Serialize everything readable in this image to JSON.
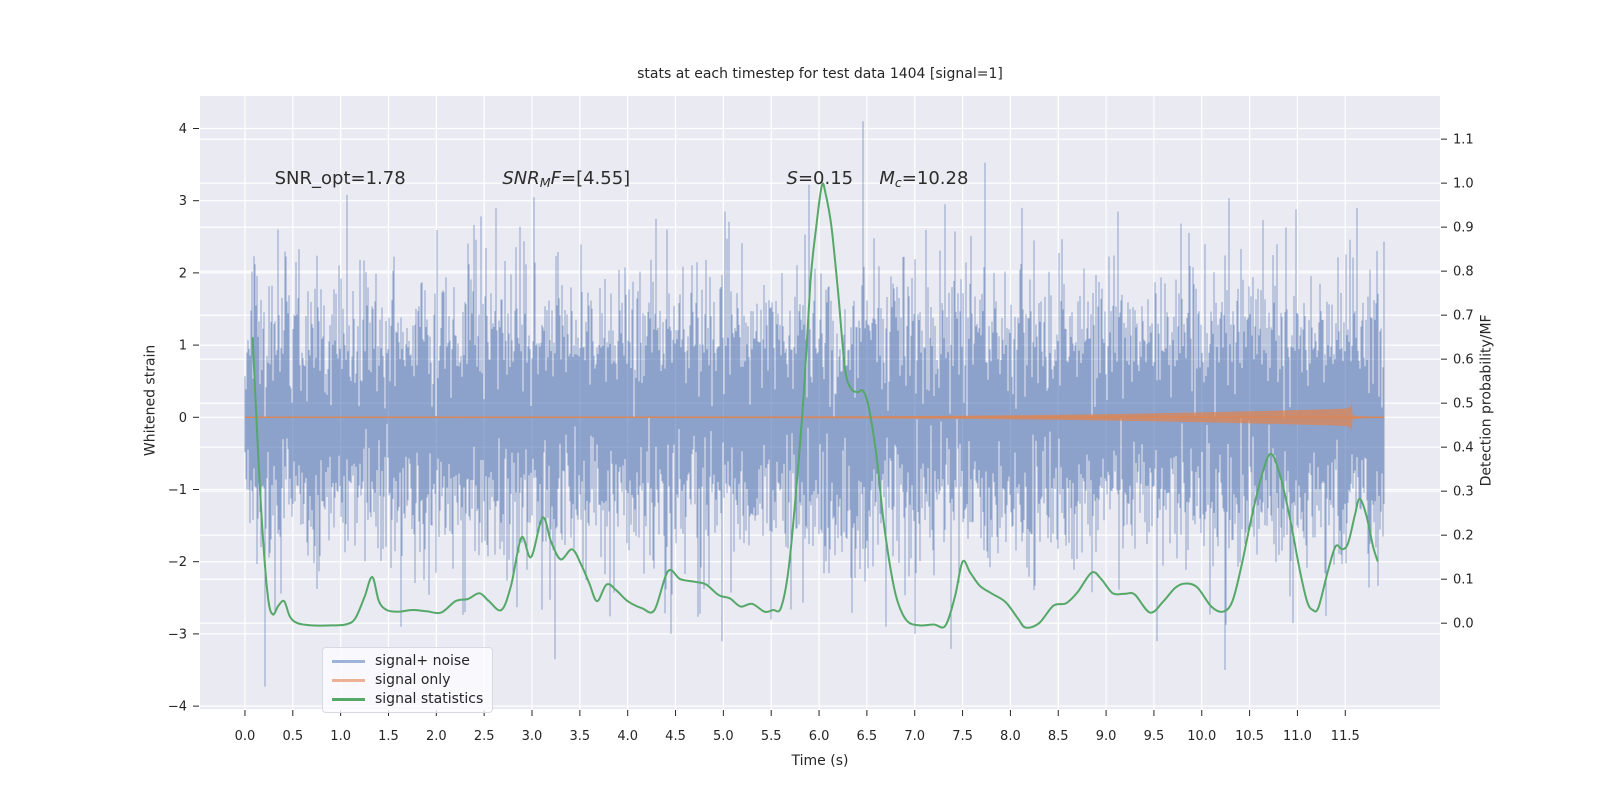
{
  "chart_data": {
    "type": "line",
    "title": "stats at each timestep for test data 1404 [signal=1]",
    "xlabel": "Time (s)",
    "ylabel_left": "Whitened strain",
    "ylabel_right": "Detection probability/MF",
    "grid": true,
    "background_color": "#eaeaf2",
    "grid_color": "#ffffff",
    "xlim": [
      -0.47,
      12.49
    ],
    "ylim_left": [
      -4.04,
      4.45
    ],
    "ylim_right": [
      -0.195,
      1.198
    ],
    "x_ticks": [
      0.0,
      0.5,
      1.0,
      1.5,
      2.0,
      2.5,
      3.0,
      3.5,
      4.0,
      4.5,
      5.0,
      5.5,
      6.0,
      6.5,
      7.0,
      7.5,
      8.0,
      8.5,
      9.0,
      9.5,
      10.0,
      10.5,
      11.0,
      11.5
    ],
    "x_tick_labels": [
      "0.0",
      "0.5",
      "1.0",
      "1.5",
      "2.0",
      "2.5",
      "3.0",
      "3.5",
      "4.0",
      "4.5",
      "5.0",
      "5.5",
      "6.0",
      "6.5",
      "7.0",
      "7.5",
      "8.0",
      "8.5",
      "9.0",
      "9.5",
      "10.0",
      "10.5",
      "11.0",
      "11.5"
    ],
    "y_ticks_left": [
      -4,
      -3,
      -2,
      -1,
      0,
      1,
      2,
      3,
      4
    ],
    "y_tick_labels_left": [
      "−4",
      "−3",
      "−2",
      "−1",
      "0",
      "1",
      "2",
      "3",
      "4"
    ],
    "y_ticks_right": [
      0.0,
      0.1,
      0.2,
      0.3,
      0.4,
      0.5,
      0.6,
      0.7,
      0.8,
      0.9,
      1.0,
      1.1
    ],
    "y_tick_labels_right": [
      "0.0",
      "0.1",
      "0.2",
      "0.3",
      "0.4",
      "0.5",
      "0.6",
      "0.7",
      "0.8",
      "0.9",
      "1.0",
      "1.1"
    ],
    "legend": {
      "position": "lower-left",
      "entries": [
        {
          "label": "signal+ noise",
          "swatch_color": "#9db3d8"
        },
        {
          "label": "signal only",
          "swatch_color": "#ecb195"
        },
        {
          "label": "signal statistics",
          "swatch_color": "#55a868"
        }
      ]
    },
    "annotations": [
      {
        "t": 0.31,
        "y_strain": 3.2,
        "segments": [
          {
            "text": "SNR_opt=1.78"
          }
        ]
      },
      {
        "t": 2.69,
        "y_strain": 3.2,
        "segments": [
          {
            "text": "SNR",
            "italic": true
          },
          {
            "text": "M",
            "italic": true,
            "sub": true
          },
          {
            "text": "F",
            "italic": true
          },
          {
            "text": "=[4.55]"
          }
        ]
      },
      {
        "t": 5.66,
        "y_strain": 3.2,
        "segments": [
          {
            "text": "S",
            "italic": true
          },
          {
            "text": "=0.15"
          }
        ]
      },
      {
        "t": 6.63,
        "y_strain": 3.2,
        "segments": [
          {
            "text": "M",
            "italic": true
          },
          {
            "text": "c",
            "italic": true,
            "sub": true
          },
          {
            "text": "=10.28"
          }
        ]
      }
    ],
    "series": [
      {
        "name": "signal+ noise",
        "axis": "left",
        "render": "noise-band",
        "color": "#4c72b0",
        "alpha": 0.6,
        "noise_model": {
          "seed": 1404,
          "sigma": 0.85,
          "samples_per_column": 8,
          "t_start": 0.0,
          "t_end": 11.92,
          "clip": [
            -3.8,
            4.12
          ]
        },
        "notable_spikes_up": [
          [
            0.35,
            2.6
          ],
          [
            1.07,
            3.08
          ],
          [
            2.62,
            2.9
          ],
          [
            3.02,
            3.05
          ],
          [
            4.3,
            2.75
          ],
          [
            5.02,
            2.85
          ],
          [
            5.9,
            3.22
          ],
          [
            6.46,
            4.1
          ],
          [
            7.32,
            2.95
          ],
          [
            8.12,
            2.9
          ],
          [
            9.12,
            2.85
          ],
          [
            10.98,
            2.88
          ],
          [
            11.62,
            2.9
          ]
        ],
        "notable_spikes_down": [
          [
            0.21,
            -3.73
          ],
          [
            1.63,
            -2.9
          ],
          [
            2.3,
            -2.7
          ],
          [
            3.24,
            -3.35
          ],
          [
            4.45,
            -3.0
          ],
          [
            5.5,
            -2.8
          ],
          [
            6.7,
            -2.9
          ],
          [
            7.0,
            -3.0
          ],
          [
            9.53,
            -3.1
          ],
          [
            10.24,
            -3.5
          ],
          [
            10.95,
            -2.85
          ],
          [
            11.3,
            -2.75
          ]
        ]
      },
      {
        "name": "signal only",
        "axis": "left",
        "render": "chirp-envelope",
        "color": "#dd8452",
        "alpha": 0.75,
        "center_strain": 0.0,
        "envelope": [
          [
            0.0,
            0.008
          ],
          [
            2.0,
            0.009
          ],
          [
            4.0,
            0.01
          ],
          [
            5.0,
            0.011
          ],
          [
            6.0,
            0.013
          ],
          [
            6.5,
            0.015
          ],
          [
            7.0,
            0.018
          ],
          [
            7.5,
            0.022
          ],
          [
            8.0,
            0.028
          ],
          [
            8.5,
            0.035
          ],
          [
            9.0,
            0.044
          ],
          [
            9.5,
            0.055
          ],
          [
            10.0,
            0.068
          ],
          [
            10.4,
            0.08
          ],
          [
            10.8,
            0.093
          ],
          [
            11.1,
            0.103
          ],
          [
            11.3,
            0.11
          ],
          [
            11.45,
            0.116
          ],
          [
            11.53,
            0.124
          ],
          [
            11.555,
            0.155
          ]
        ],
        "merger": {
          "t": 11.568,
          "peak_top": 0.27,
          "peak_bottom": -0.21
        },
        "ringdown": [
          [
            11.585,
            0.03
          ],
          [
            11.62,
            0.018
          ],
          [
            11.7,
            0.012
          ],
          [
            11.91,
            0.009
          ]
        ]
      },
      {
        "name": "signal statistics",
        "axis": "right",
        "render": "line",
        "color": "#55a868",
        "points": [
          [
            0.08,
            0.65
          ],
          [
            0.13,
            0.42
          ],
          [
            0.18,
            0.22
          ],
          [
            0.24,
            0.06
          ],
          [
            0.29,
            0.02
          ],
          [
            0.35,
            0.04
          ],
          [
            0.41,
            0.05
          ],
          [
            0.47,
            0.015
          ],
          [
            0.55,
            0.0
          ],
          [
            0.7,
            -0.005
          ],
          [
            0.9,
            -0.005
          ],
          [
            1.05,
            -0.003
          ],
          [
            1.15,
            0.01
          ],
          [
            1.25,
            0.06
          ],
          [
            1.33,
            0.105
          ],
          [
            1.4,
            0.05
          ],
          [
            1.48,
            0.03
          ],
          [
            1.6,
            0.026
          ],
          [
            1.75,
            0.03
          ],
          [
            1.9,
            0.027
          ],
          [
            2.05,
            0.024
          ],
          [
            2.2,
            0.05
          ],
          [
            2.33,
            0.055
          ],
          [
            2.45,
            0.068
          ],
          [
            2.55,
            0.05
          ],
          [
            2.68,
            0.03
          ],
          [
            2.78,
            0.085
          ],
          [
            2.89,
            0.195
          ],
          [
            2.99,
            0.15
          ],
          [
            3.11,
            0.24
          ],
          [
            3.2,
            0.185
          ],
          [
            3.3,
            0.145
          ],
          [
            3.42,
            0.168
          ],
          [
            3.52,
            0.13
          ],
          [
            3.6,
            0.09
          ],
          [
            3.68,
            0.05
          ],
          [
            3.78,
            0.088
          ],
          [
            3.88,
            0.075
          ],
          [
            4.0,
            0.05
          ],
          [
            4.15,
            0.034
          ],
          [
            4.28,
            0.03
          ],
          [
            4.42,
            0.118
          ],
          [
            4.55,
            0.1
          ],
          [
            4.7,
            0.094
          ],
          [
            4.82,
            0.088
          ],
          [
            4.95,
            0.064
          ],
          [
            5.07,
            0.056
          ],
          [
            5.18,
            0.038
          ],
          [
            5.3,
            0.044
          ],
          [
            5.43,
            0.026
          ],
          [
            5.52,
            0.03
          ],
          [
            5.6,
            0.034
          ],
          [
            5.68,
            0.12
          ],
          [
            5.76,
            0.3
          ],
          [
            5.84,
            0.52
          ],
          [
            5.91,
            0.775
          ],
          [
            5.97,
            0.9
          ],
          [
            6.03,
            0.995
          ],
          [
            6.07,
            0.975
          ],
          [
            6.13,
            0.9
          ],
          [
            6.2,
            0.75
          ],
          [
            6.27,
            0.58
          ],
          [
            6.33,
            0.535
          ],
          [
            6.4,
            0.525
          ],
          [
            6.46,
            0.528
          ],
          [
            6.52,
            0.49
          ],
          [
            6.6,
            0.38
          ],
          [
            6.67,
            0.24
          ],
          [
            6.75,
            0.12
          ],
          [
            6.82,
            0.05
          ],
          [
            6.92,
            0.005
          ],
          [
            7.05,
            -0.005
          ],
          [
            7.2,
            -0.003
          ],
          [
            7.32,
            -0.006
          ],
          [
            7.42,
            0.06
          ],
          [
            7.5,
            0.14
          ],
          [
            7.58,
            0.115
          ],
          [
            7.68,
            0.085
          ],
          [
            7.8,
            0.068
          ],
          [
            7.95,
            0.048
          ],
          [
            8.08,
            0.01
          ],
          [
            8.16,
            -0.01
          ],
          [
            8.3,
            0.0
          ],
          [
            8.45,
            0.04
          ],
          [
            8.58,
            0.045
          ],
          [
            8.7,
            0.07
          ],
          [
            8.85,
            0.115
          ],
          [
            8.95,
            0.1
          ],
          [
            9.07,
            0.068
          ],
          [
            9.2,
            0.067
          ],
          [
            9.3,
            0.065
          ],
          [
            9.46,
            0.024
          ],
          [
            9.6,
            0.05
          ],
          [
            9.72,
            0.08
          ],
          [
            9.82,
            0.09
          ],
          [
            9.95,
            0.082
          ],
          [
            10.1,
            0.038
          ],
          [
            10.22,
            0.026
          ],
          [
            10.32,
            0.05
          ],
          [
            10.42,
            0.135
          ],
          [
            10.52,
            0.24
          ],
          [
            10.62,
            0.33
          ],
          [
            10.72,
            0.385
          ],
          [
            10.82,
            0.335
          ],
          [
            10.92,
            0.24
          ],
          [
            11.02,
            0.125
          ],
          [
            11.1,
            0.05
          ],
          [
            11.16,
            0.03
          ],
          [
            11.22,
            0.036
          ],
          [
            11.32,
            0.12
          ],
          [
            11.4,
            0.175
          ],
          [
            11.47,
            0.168
          ],
          [
            11.53,
            0.182
          ],
          [
            11.6,
            0.245
          ],
          [
            11.65,
            0.283
          ],
          [
            11.72,
            0.245
          ],
          [
            11.79,
            0.175
          ],
          [
            11.84,
            0.14
          ]
        ]
      }
    ]
  }
}
